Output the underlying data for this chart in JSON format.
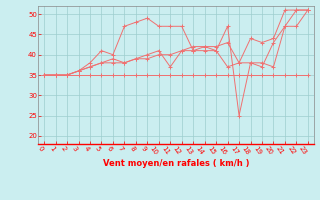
{
  "xlabel": "Vent moyen/en rafales ( km/h )",
  "background_color": "#cbeef0",
  "grid_color": "#9ecece",
  "line_color": "#f07070",
  "xlim": [
    -0.5,
    23.5
  ],
  "ylim": [
    18,
    52
  ],
  "yticks": [
    20,
    25,
    30,
    35,
    40,
    45,
    50
  ],
  "xticks": [
    0,
    1,
    2,
    3,
    4,
    5,
    6,
    7,
    8,
    9,
    10,
    11,
    12,
    13,
    14,
    15,
    16,
    17,
    18,
    19,
    20,
    21,
    22,
    23
  ],
  "lines": [
    [
      35,
      35,
      35,
      35,
      35,
      35,
      35,
      35,
      35,
      35,
      35,
      35,
      35,
      35,
      35,
      35,
      35,
      35,
      35,
      35,
      35,
      35,
      35,
      35
    ],
    [
      35,
      35,
      35,
      36,
      37,
      38,
      38,
      38,
      39,
      39,
      40,
      40,
      41,
      41,
      42,
      42,
      43,
      38,
      38,
      38,
      37,
      47,
      47,
      51
    ],
    [
      35,
      35,
      35,
      36,
      38,
      41,
      40,
      47,
      48,
      49,
      47,
      47,
      47,
      41,
      41,
      41,
      47,
      25,
      38,
      37,
      43,
      47,
      51,
      51
    ],
    [
      35,
      35,
      35,
      36,
      37,
      38,
      39,
      38,
      39,
      40,
      41,
      37,
      41,
      42,
      42,
      41,
      37,
      38,
      44,
      43,
      44,
      51,
      51,
      51
    ]
  ],
  "xlabel_fontsize": 6,
  "ylabel_fontsize": 5,
  "tick_labelsize": 5
}
